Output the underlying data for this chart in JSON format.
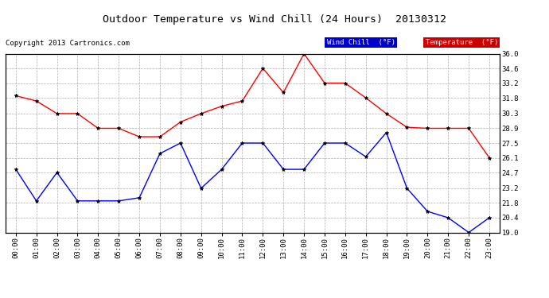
{
  "title": "Outdoor Temperature vs Wind Chill (24 Hours)  20130312",
  "copyright": "Copyright 2013 Cartronics.com",
  "x_labels": [
    "00:00",
    "01:00",
    "02:00",
    "03:00",
    "04:00",
    "05:00",
    "06:00",
    "07:00",
    "08:00",
    "09:00",
    "10:00",
    "11:00",
    "12:00",
    "13:00",
    "14:00",
    "15:00",
    "16:00",
    "17:00",
    "18:00",
    "19:00",
    "20:00",
    "21:00",
    "22:00",
    "23:00"
  ],
  "temperature": [
    32.0,
    31.5,
    30.3,
    30.3,
    28.9,
    28.9,
    28.1,
    28.1,
    29.5,
    30.3,
    31.0,
    31.5,
    34.6,
    32.3,
    36.0,
    33.2,
    33.2,
    31.8,
    30.3,
    29.0,
    28.9,
    28.9,
    28.9,
    26.1
  ],
  "wind_chill": [
    25.0,
    22.0,
    24.7,
    22.0,
    22.0,
    22.0,
    22.3,
    26.5,
    27.5,
    23.2,
    25.0,
    27.5,
    27.5,
    25.0,
    25.0,
    27.5,
    27.5,
    26.2,
    28.5,
    23.2,
    21.0,
    20.4,
    19.0,
    20.4
  ],
  "temp_color": "#ff0000",
  "wind_color": "#0000ff",
  "bg_color": "#ffffff",
  "plot_bg": "#ffffff",
  "grid_color": "#aaaaaa",
  "ylim": [
    19.0,
    36.0
  ],
  "yticks": [
    19.0,
    20.4,
    21.8,
    23.2,
    24.7,
    26.1,
    27.5,
    28.9,
    30.3,
    31.8,
    33.2,
    34.6,
    36.0
  ],
  "legend_wind_bg": "#0000cc",
  "legend_temp_bg": "#cc0000",
  "legend_wind_text": "Wind Chill  (°F)",
  "legend_temp_text": "Temperature  (°F)"
}
